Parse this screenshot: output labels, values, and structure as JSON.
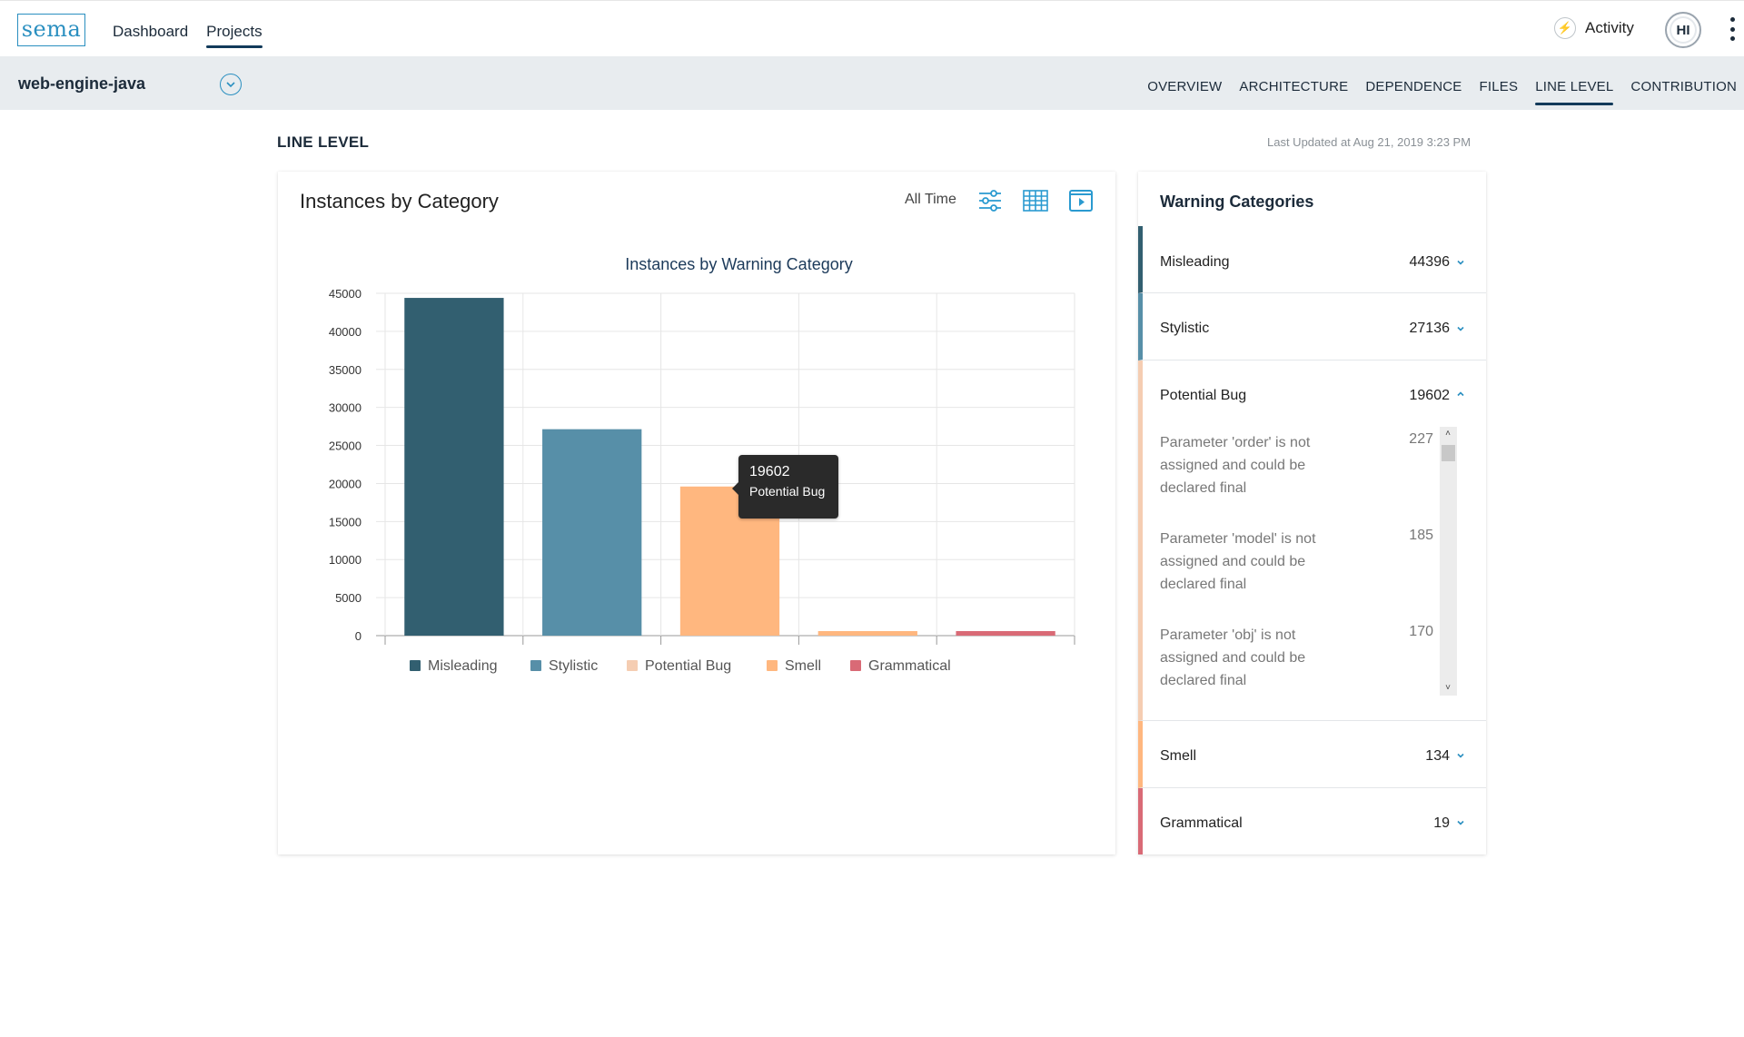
{
  "header": {
    "logo": "sema",
    "nav": [
      {
        "label": "Dashboard",
        "active": false
      },
      {
        "label": "Projects",
        "active": true
      }
    ],
    "activity_label": "Activity",
    "avatar_initials": "HI"
  },
  "project": {
    "name": "web-engine-java",
    "tabs": [
      {
        "label": "OVERVIEW",
        "active": false
      },
      {
        "label": "ARCHITECTURE",
        "active": false
      },
      {
        "label": "DEPENDENCE",
        "active": false
      },
      {
        "label": "FILES",
        "active": false
      },
      {
        "label": "LINE LEVEL",
        "active": true
      },
      {
        "label": "CONTRIBUTION",
        "active": false
      }
    ]
  },
  "page": {
    "title": "LINE LEVEL",
    "last_updated": "Last Updated at Aug 21, 2019 3:23 PM"
  },
  "chart_card": {
    "title": "Instances by Category",
    "time_filter": "All Time",
    "tooltip": {
      "value": "19602",
      "label": "Potential Bug"
    }
  },
  "chart_data": {
    "type": "bar",
    "title": "Instances by Warning Category",
    "xlabel": "",
    "ylabel": "",
    "categories": [
      "Misleading",
      "Stylistic",
      "Potential Bug",
      "Smell",
      "Grammatical"
    ],
    "values": [
      44396,
      27136,
      19602,
      134,
      19
    ],
    "colors": [
      "#325f70",
      "#578fa8",
      "#ffb77f",
      "#ffb77f",
      "#d96a76"
    ],
    "legend": [
      {
        "name": "Misleading",
        "color": "#325f70"
      },
      {
        "name": "Stylistic",
        "color": "#578fa8"
      },
      {
        "name": "Potential Bug",
        "color": "#f5cdb2"
      },
      {
        "name": "Smell",
        "color": "#ffb77f"
      },
      {
        "name": "Grammatical",
        "color": "#d96a76"
      }
    ],
    "yticks": [
      "0",
      "5000",
      "10000",
      "15000",
      "20000",
      "25000",
      "30000",
      "35000",
      "40000",
      "45000"
    ],
    "ylim": [
      0,
      45000
    ],
    "grid": true,
    "legend_position": "bottom"
  },
  "warnings": {
    "title": "Warning Categories",
    "categories": [
      {
        "name": "Misleading",
        "count": "44396",
        "color": "#325f70",
        "expanded": false
      },
      {
        "name": "Stylistic",
        "count": "27136",
        "color": "#578fa8",
        "expanded": false
      },
      {
        "name": "Potential Bug",
        "count": "19602",
        "color": "#f5cdb2",
        "expanded": true
      },
      {
        "name": "Smell",
        "count": "134",
        "color": "#ffb77f",
        "expanded": false
      },
      {
        "name": "Grammatical",
        "count": "19",
        "color": "#d96a76",
        "expanded": false
      }
    ],
    "details": [
      {
        "text": "Parameter 'order' is not assigned and could be declared final",
        "count": "227"
      },
      {
        "text": "Parameter 'model' is not assigned and could be declared final",
        "count": "185"
      },
      {
        "text": "Parameter 'obj' is not assigned and could be declared final",
        "count": "170"
      }
    ]
  }
}
